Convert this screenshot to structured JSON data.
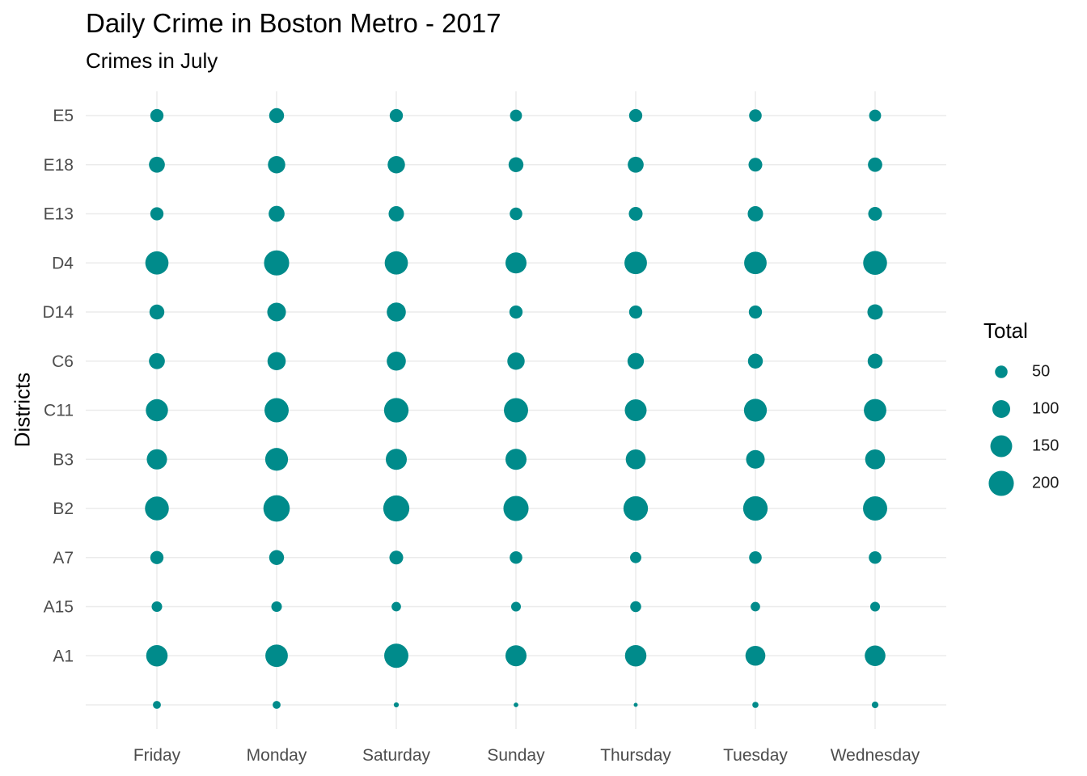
{
  "chart_data": {
    "type": "scatter",
    "title": "Daily Crime in Boston Metro - 2017",
    "subtitle": "Crimes in July",
    "xlabel": "",
    "ylabel": "Districts",
    "x_categories": [
      "Friday",
      "Monday",
      "Saturday",
      "Sunday",
      "Thursday",
      "Tuesday",
      "Wednesday"
    ],
    "y_categories": [
      "",
      "A1",
      "A15",
      "A7",
      "B2",
      "B3",
      "C11",
      "C6",
      "D14",
      "D4",
      "E13",
      "E18",
      "E5"
    ],
    "size_legend": {
      "title": "Total",
      "breaks": [
        50,
        100,
        150,
        200
      ]
    },
    "point_color": "#008B8B",
    "grid": true,
    "legend_position": "right",
    "series": [
      {
        "y": "",
        "values": [
          20,
          20,
          8,
          7,
          5,
          12,
          14
        ]
      },
      {
        "y": "A1",
        "values": [
          145,
          160,
          185,
          140,
          145,
          125,
          135
        ]
      },
      {
        "y": "A15",
        "values": [
          35,
          35,
          28,
          30,
          38,
          28,
          30
        ]
      },
      {
        "y": "A7",
        "values": [
          55,
          70,
          60,
          50,
          40,
          50,
          50
        ]
      },
      {
        "y": "B2",
        "values": [
          180,
          220,
          215,
          200,
          190,
          190,
          185
        ]
      },
      {
        "y": "B3",
        "values": [
          130,
          165,
          140,
          140,
          125,
          110,
          125
        ]
      },
      {
        "y": "C11",
        "values": [
          155,
          185,
          190,
          185,
          150,
          165,
          160
        ]
      },
      {
        "y": "C6",
        "values": [
          80,
          105,
          115,
          95,
          85,
          70,
          70
        ]
      },
      {
        "y": "D14",
        "values": [
          70,
          110,
          115,
          55,
          55,
          55,
          75
        ]
      },
      {
        "y": "D4",
        "values": [
          170,
          200,
          170,
          140,
          160,
          160,
          180
        ]
      },
      {
        "y": "E13",
        "values": [
          55,
          80,
          75,
          50,
          60,
          75,
          60
        ]
      },
      {
        "y": "E18",
        "values": [
          80,
          95,
          95,
          70,
          80,
          60,
          65
        ]
      },
      {
        "y": "E5",
        "values": [
          55,
          70,
          55,
          45,
          55,
          50,
          45
        ]
      }
    ]
  }
}
